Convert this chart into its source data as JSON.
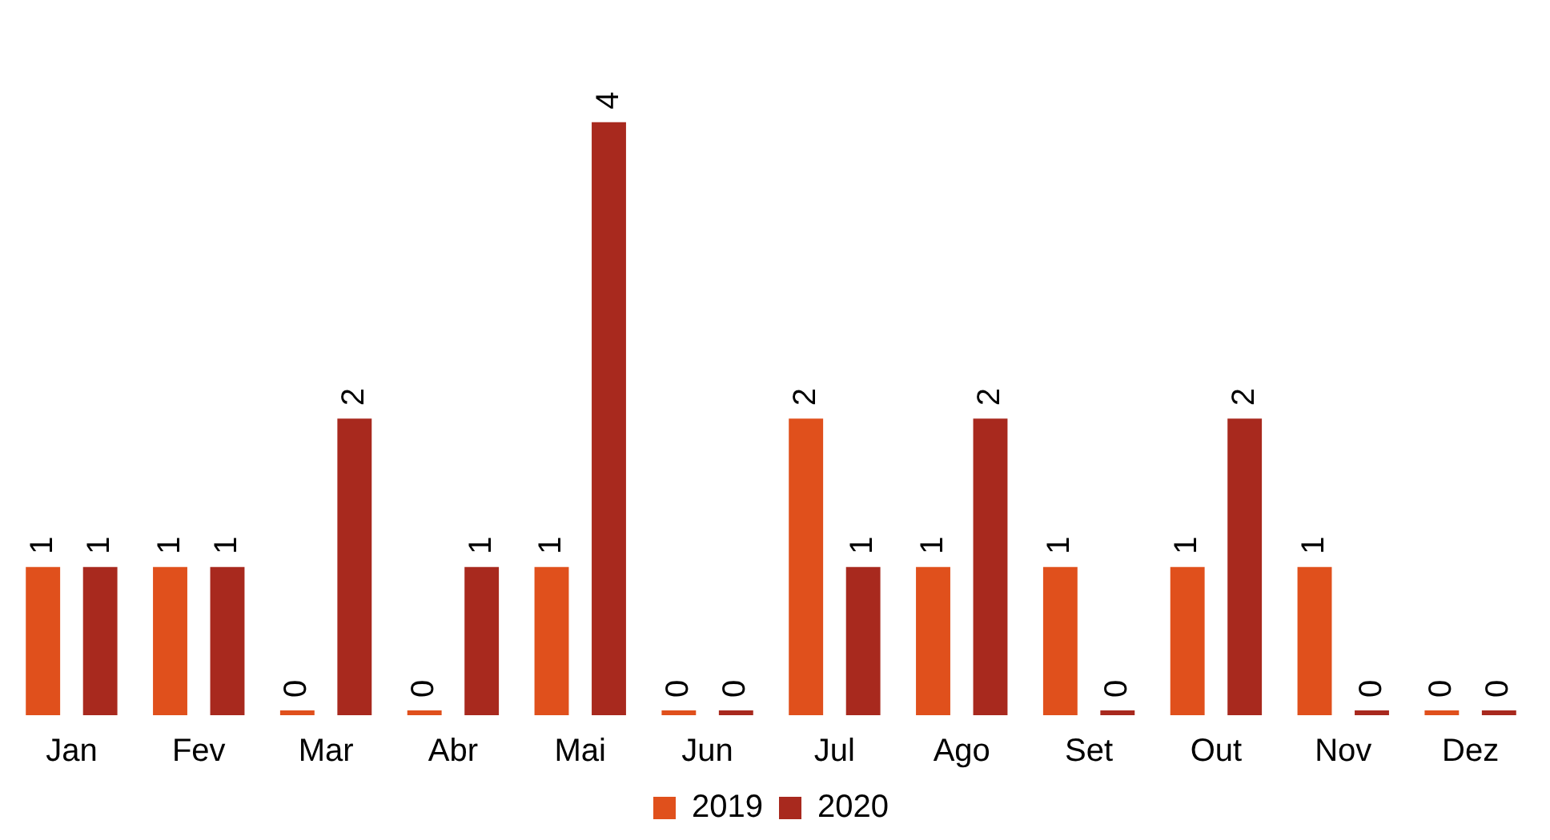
{
  "chart_data": {
    "type": "bar",
    "categories": [
      "Jan",
      "Fev",
      "Mar",
      "Abr",
      "Mai",
      "Jun",
      "Jul",
      "Ago",
      "Set",
      "Out",
      "Nov",
      "Dez"
    ],
    "series": [
      {
        "name": "2019",
        "color": "#e0501c",
        "values": [
          1,
          1,
          0,
          0,
          1,
          0,
          2,
          1,
          1,
          1,
          1,
          0
        ]
      },
      {
        "name": "2020",
        "color": "#a8291e",
        "values": [
          1,
          1,
          2,
          1,
          4,
          0,
          1,
          2,
          0,
          2,
          0,
          0
        ]
      }
    ],
    "data_labels": true,
    "legend": "bottom",
    "grid": false
  }
}
